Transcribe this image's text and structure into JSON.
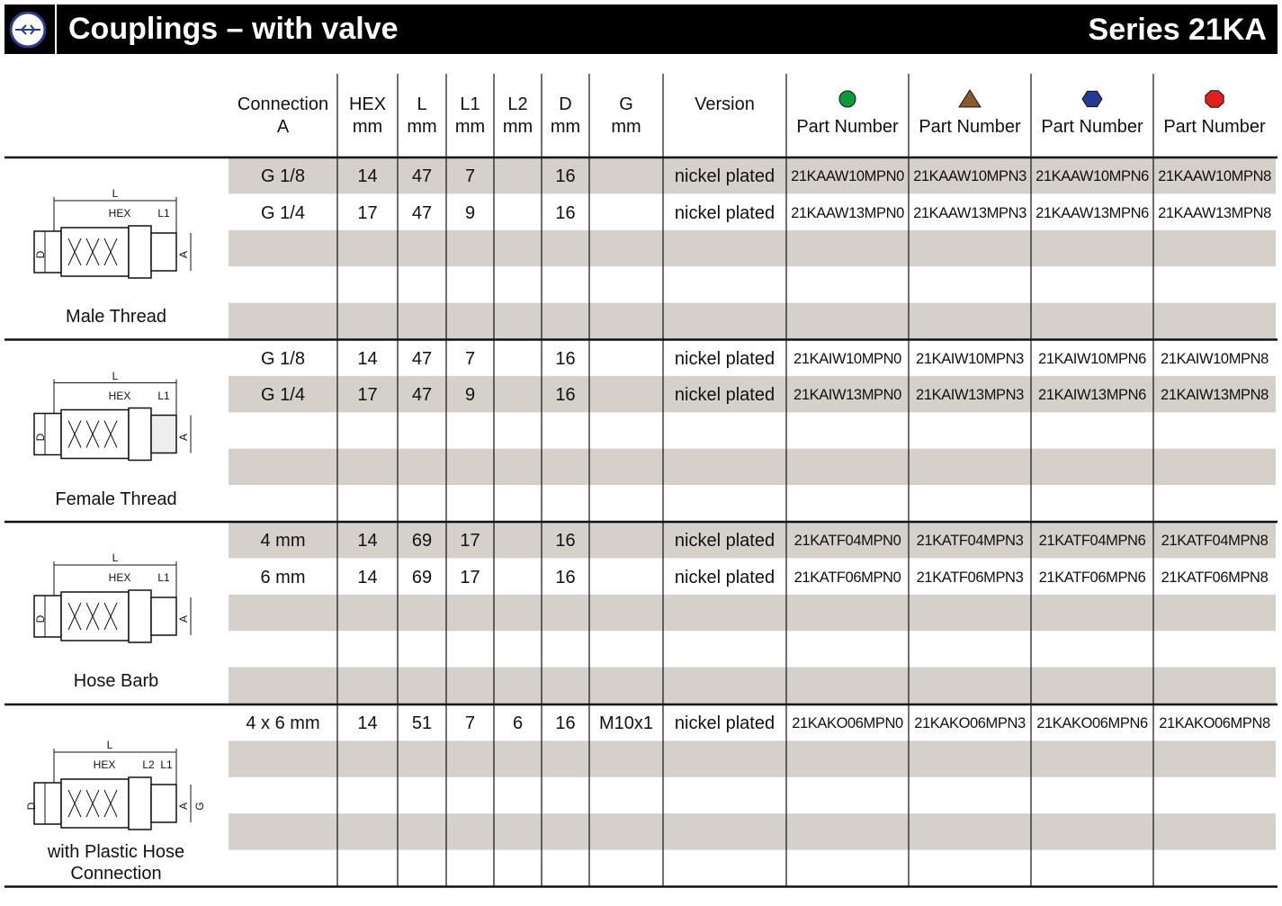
{
  "header": {
    "title": "Couplings – with valve",
    "series": "Series 21KA"
  },
  "table": {
    "columns": [
      [
        "Connection",
        "A"
      ],
      [
        "HEX",
        "mm"
      ],
      [
        "L",
        "mm"
      ],
      [
        "L1",
        "mm"
      ],
      [
        "L2",
        "mm"
      ],
      [
        "D",
        "mm"
      ],
      [
        "G",
        "mm"
      ],
      [
        "Version"
      ],
      [
        "Part Number"
      ],
      [
        "Part Number"
      ],
      [
        "Part Number"
      ],
      [
        "Part Number"
      ]
    ],
    "groups": [
      {
        "name": "Male Thread",
        "drawing_labels": [
          "L",
          "HEX",
          "L1",
          "D",
          "A"
        ],
        "rows": [
          [
            "G 1/8",
            "14",
            "47",
            "7",
            null,
            "16",
            null,
            "nickel plated",
            "21KAAW10MPN0",
            "21KAAW10MPN3",
            "21KAAW10MPN6",
            "21KAAW10MPN8"
          ],
          [
            "G 1/4",
            "17",
            "47",
            "9",
            null,
            "16",
            null,
            "nickel plated",
            "21KAAW13MPN0",
            "21KAAW13MPN3",
            "21KAAW13MPN6",
            "21KAAW13MPN8"
          ]
        ]
      },
      {
        "name": "Female Thread",
        "drawing_labels": [
          "L",
          "HEX",
          "L1",
          "D",
          "A"
        ],
        "rows": [
          [
            "G 1/8",
            "14",
            "47",
            "7",
            null,
            "16",
            null,
            "nickel plated",
            "21KAIW10MPN0",
            "21KAIW10MPN3",
            "21KAIW10MPN6",
            "21KAIW10MPN8"
          ],
          [
            "G 1/4",
            "17",
            "47",
            "9",
            null,
            "16",
            null,
            "nickel plated",
            "21KAIW13MPN0",
            "21KAIW13MPN3",
            "21KAIW13MPN6",
            "21KAIW13MPN8"
          ]
        ]
      },
      {
        "name": "Hose Barb",
        "drawing_labels": [
          "L",
          "HEX",
          "L1",
          "D",
          "A"
        ],
        "rows": [
          [
            "4 mm",
            "14",
            "69",
            "17",
            null,
            "16",
            null,
            "nickel plated",
            "21KATF04MPN0",
            "21KATF04MPN3",
            "21KATF04MPN6",
            "21KATF04MPN8"
          ],
          [
            "6 mm",
            "14",
            "69",
            "17",
            null,
            "16",
            null,
            "nickel plated",
            "21KATF06MPN0",
            "21KATF06MPN3",
            "21KATF06MPN6",
            "21KATF06MPN8"
          ]
        ]
      },
      {
        "name": "with Plastic Hose Connection",
        "drawing_labels": [
          "L",
          "HEX",
          "L2",
          "L1",
          "D",
          "A",
          "G"
        ],
        "rows": [
          [
            "4 x 6 mm",
            "14",
            "51",
            "7",
            "6",
            "16",
            "M10x1",
            "nickel plated",
            "21KAKO06MPN0",
            "21KAKO06MPN3",
            "21KAKO06MPN6",
            "21KAKO06MPN8"
          ]
        ]
      }
    ]
  }
}
